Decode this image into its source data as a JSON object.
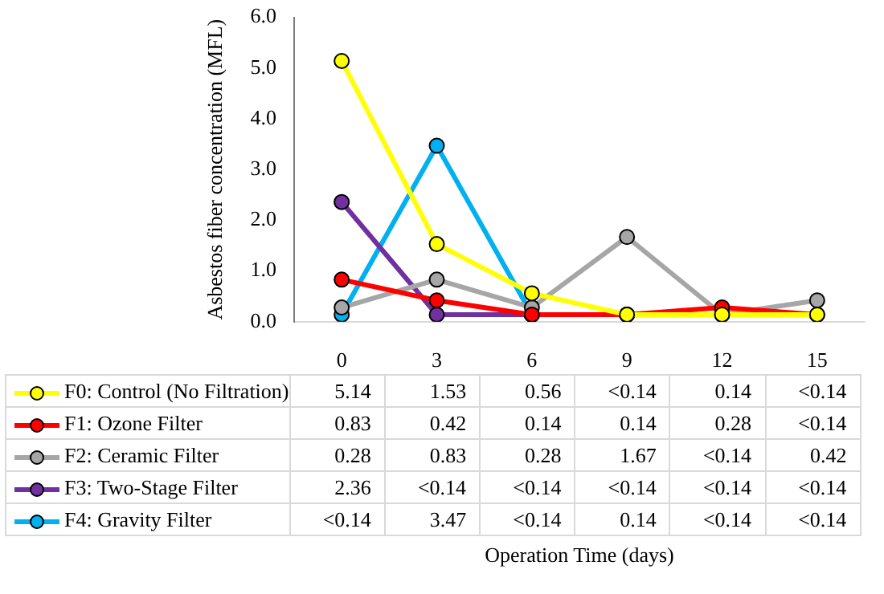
{
  "chart_data": {
    "type": "line",
    "annotations": [
      "Operation Time (days)"
    ],
    "ylabel": "Asbestos fiber concentration (MFL)",
    "categories": [
      "0",
      "3",
      "6",
      "9",
      "12",
      "15"
    ],
    "ylim": [
      0,
      6
    ],
    "yticks": [
      {
        "value": 0,
        "label": "0.0"
      },
      {
        "value": 1,
        "label": "1.0"
      },
      {
        "value": 2,
        "label": "2.0"
      },
      {
        "value": 3,
        "label": "3.0"
      },
      {
        "value": 4,
        "label": "4.0"
      },
      {
        "value": 5,
        "label": "5.0"
      },
      {
        "value": 6,
        "label": "6.0"
      }
    ],
    "grid": false,
    "legend": "bottom left",
    "marker": "circle",
    "line_style": "solid",
    "series": [
      {
        "name": "F0: Control (No Filtration)",
        "color": "#ffff00",
        "values": [
          5.14,
          1.53,
          0.56,
          0.14,
          0.14,
          0.14
        ],
        "value_labels": [
          "5.14",
          "1.53",
          "0.56",
          "<0.14",
          "0.14",
          "<0.14"
        ]
      },
      {
        "name": "F1: Ozone Filter",
        "color": "#ff0000",
        "values": [
          0.83,
          0.42,
          0.14,
          0.14,
          0.28,
          0.14
        ],
        "value_labels": [
          "0.83",
          "0.42",
          "0.14",
          "0.14",
          "0.28",
          "<0.14"
        ]
      },
      {
        "name": "F2: Ceramic Filter",
        "color": "#a6a6a6",
        "values": [
          0.28,
          0.83,
          0.28,
          1.67,
          0.14,
          0.42
        ],
        "value_labels": [
          "0.28",
          "0.83",
          "0.28",
          "1.67",
          "<0.14",
          "0.42"
        ]
      },
      {
        "name": "F3: Two-Stage Filter",
        "color": "#7030a0",
        "values": [
          2.36,
          0.14,
          0.14,
          0.14,
          null,
          null
        ],
        "value_labels": [
          "2.36",
          "<0.14",
          "<0.14",
          "<0.14",
          "<0.14",
          "<0.14"
        ]
      },
      {
        "name": "F4: Gravity Filter",
        "color": "#00b0f0",
        "values": [
          0.14,
          3.47,
          0.14,
          0.14,
          null,
          null
        ],
        "value_labels": [
          "<0.14",
          "3.47",
          "<0.14",
          "0.14",
          "<0.14",
          "<0.14"
        ]
      }
    ]
  }
}
